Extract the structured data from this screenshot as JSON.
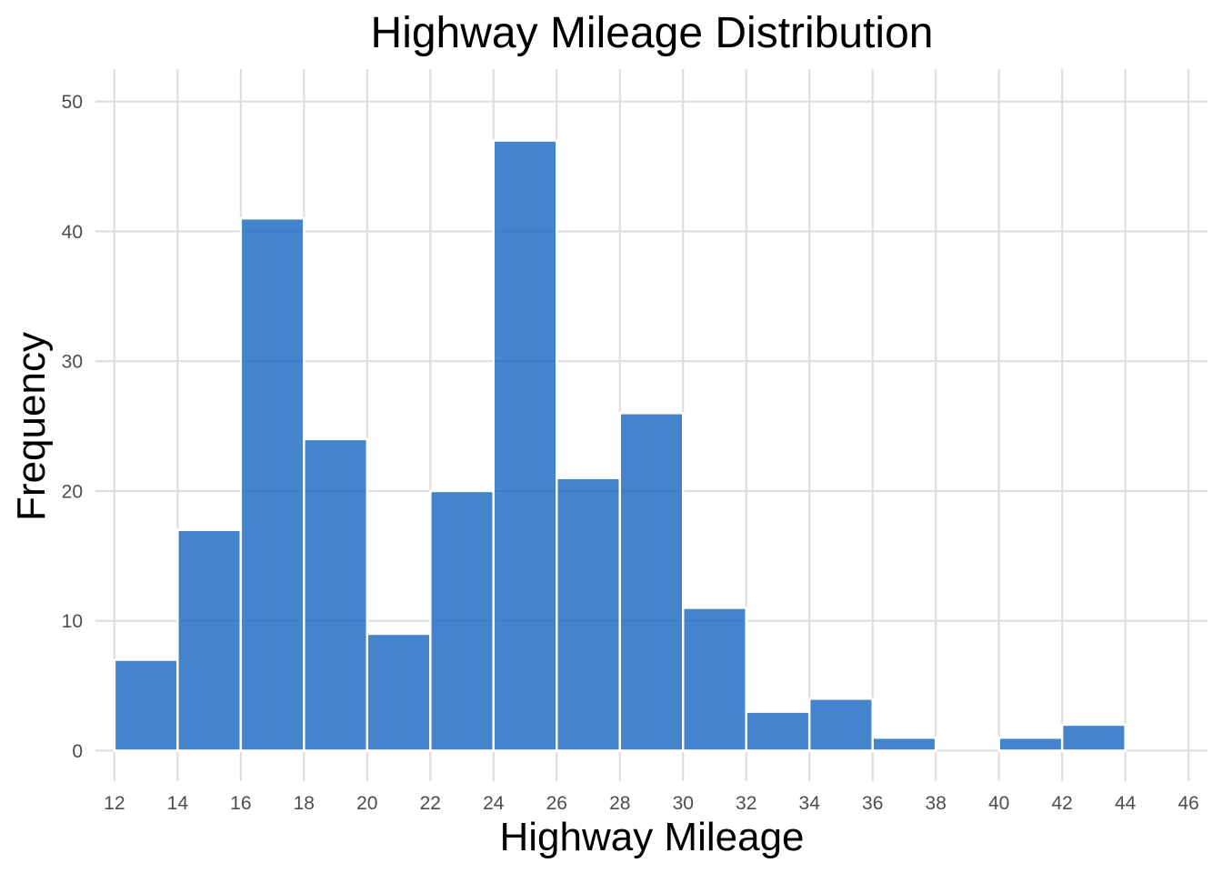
{
  "chart_data": {
    "type": "bar",
    "title": "Highway Mileage Distribution",
    "xlabel": "Highway Mileage",
    "ylabel": "Frequency",
    "bin_width": 2,
    "bins": [
      {
        "start": 12,
        "end": 14,
        "count": 7
      },
      {
        "start": 14,
        "end": 16,
        "count": 17
      },
      {
        "start": 16,
        "end": 18,
        "count": 41
      },
      {
        "start": 18,
        "end": 20,
        "count": 24
      },
      {
        "start": 20,
        "end": 22,
        "count": 9
      },
      {
        "start": 22,
        "end": 24,
        "count": 20
      },
      {
        "start": 24,
        "end": 26,
        "count": 47
      },
      {
        "start": 26,
        "end": 28,
        "count": 21
      },
      {
        "start": 28,
        "end": 30,
        "count": 26
      },
      {
        "start": 30,
        "end": 32,
        "count": 11
      },
      {
        "start": 32,
        "end": 34,
        "count": 3
      },
      {
        "start": 34,
        "end": 36,
        "count": 4
      },
      {
        "start": 36,
        "end": 38,
        "count": 1
      },
      {
        "start": 38,
        "end": 40,
        "count": 0
      },
      {
        "start": 40,
        "end": 42,
        "count": 1
      },
      {
        "start": 42,
        "end": 44,
        "count": 2
      },
      {
        "start": 44,
        "end": 46,
        "count": 0
      }
    ],
    "xlim": [
      11.4,
      46.6
    ],
    "ylim": [
      -2.35,
      52.5
    ],
    "x_ticks": [
      "12",
      "14",
      "16",
      "18",
      "20",
      "22",
      "24",
      "26",
      "28",
      "30",
      "32",
      "34",
      "36",
      "38",
      "40",
      "42",
      "44",
      "46"
    ],
    "y_ticks": [
      "0",
      "10",
      "20",
      "30",
      "40",
      "50"
    ],
    "grid": true,
    "legend": "none",
    "bar_color": "#1565C0",
    "bar_opacity": 0.8,
    "bar_outline_color": "#ffffff",
    "grid_color": "#dedede",
    "tick_label_color": "#4d4d4d"
  }
}
